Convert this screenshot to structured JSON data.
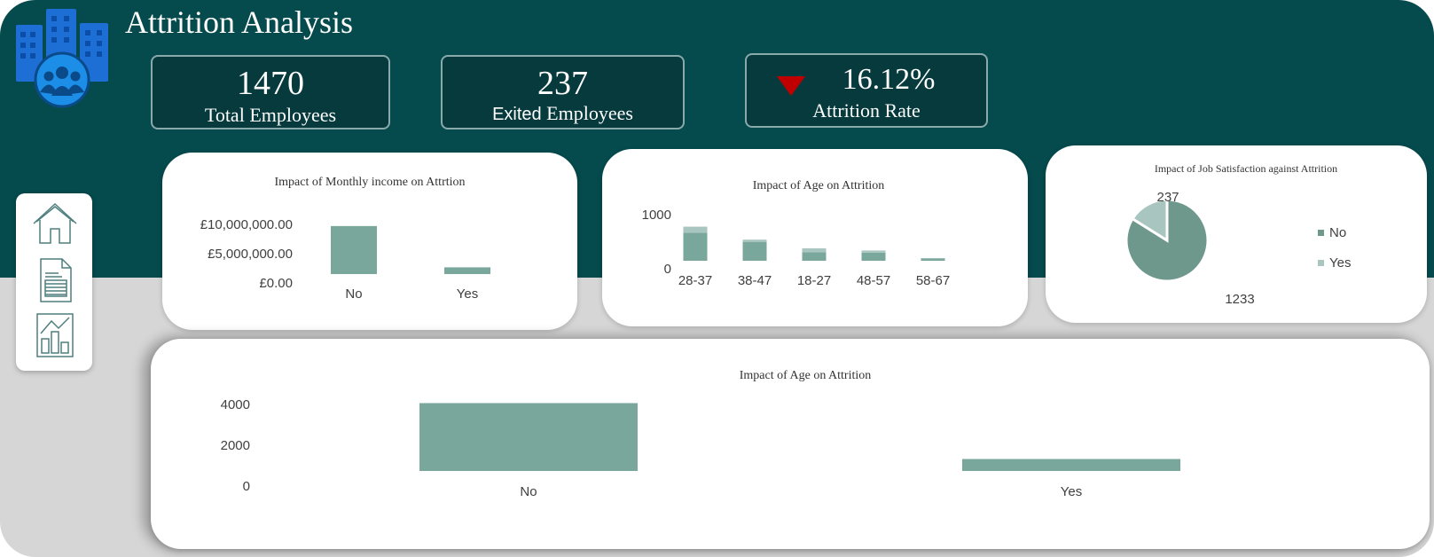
{
  "header": {
    "title": "Attrition Analysis",
    "logo_icon": "office-buildings-people-icon"
  },
  "kpis": {
    "total": {
      "value": "1470",
      "label": "Total Employees"
    },
    "exited": {
      "value": "237",
      "label_bold": "Exited",
      "label_rest": " Employees"
    },
    "rate": {
      "value": "16.12%",
      "label": "Attrition Rate",
      "trend_icon": "down-arrow-icon",
      "trend_color": "#c00000"
    }
  },
  "nav": {
    "items": [
      {
        "icon": "home-icon"
      },
      {
        "icon": "document-icon"
      },
      {
        "icon": "chart-icon"
      }
    ]
  },
  "colors": {
    "background_band": "#054a4d",
    "card_border": "#8aa9aa",
    "series_no": "#7aa79c",
    "series_yes": "#a8c5bf",
    "pie_no": "#6f988d",
    "pie_yes": "#a8c5bf"
  },
  "chart_data": [
    {
      "type": "bar",
      "title": "Impact of Monthly income on Attrtion",
      "categories": [
        "No",
        "Yes"
      ],
      "values": [
        8200000,
        1150000
      ],
      "yticks": [
        "£10,000,000.00",
        "£5,000,000.00",
        "£0.00"
      ],
      "ylim": [
        0,
        10000000
      ]
    },
    {
      "type": "bar",
      "stacked": true,
      "title": "Impact of  Age on Attrition",
      "categories": [
        "28-37",
        "38-47",
        "18-27",
        "48-57",
        "58-67"
      ],
      "series": [
        {
          "values": [
            520,
            350,
            160,
            150,
            40
          ]
        },
        {
          "values": [
            110,
            40,
            70,
            40,
            10
          ]
        }
      ],
      "yticks": [
        "1000",
        "0"
      ],
      "ylim": [
        0,
        1000
      ]
    },
    {
      "type": "pie",
      "title": "Impact of Job Satisfaction against Attrition",
      "labels": [
        "No",
        "Yes"
      ],
      "values": [
        1233,
        237
      ],
      "legend": "right"
    },
    {
      "type": "bar",
      "title": "Impact of  Age on Attrition",
      "categories": [
        "No",
        "Yes"
      ],
      "values": [
        3400,
        600
      ],
      "yticks": [
        "4000",
        "2000",
        "0"
      ],
      "ylim": [
        0,
        4000
      ]
    }
  ]
}
